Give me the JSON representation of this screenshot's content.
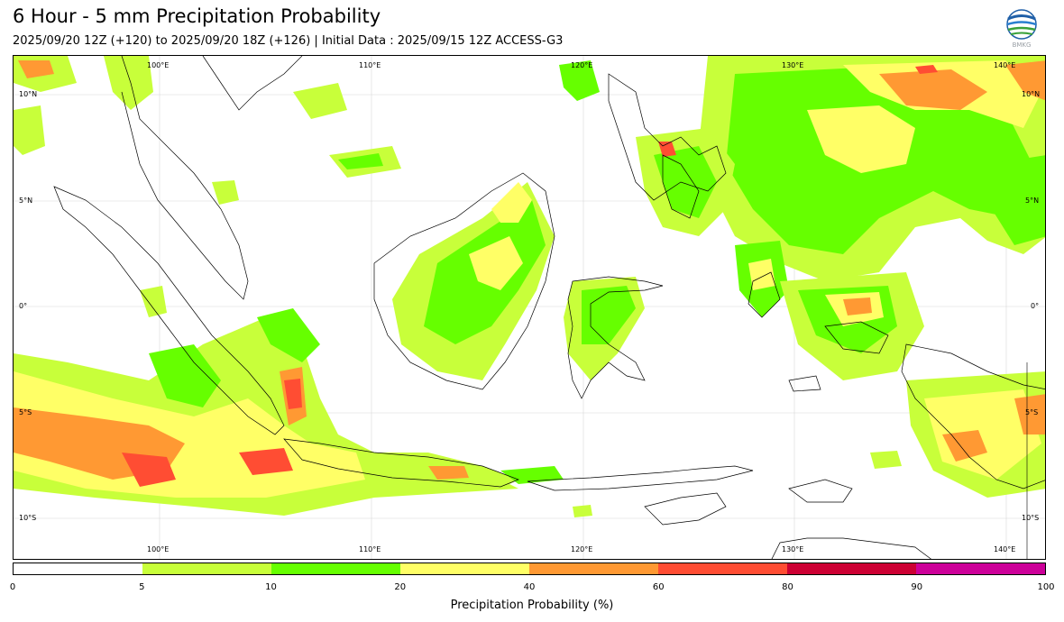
{
  "header": {
    "title": "6 Hour - 5 mm Precipitation Probability",
    "subtitle": "2025/09/20 12Z (+120) to 2025/09/20 18Z (+126) | Initial Data : 2025/09/15 12Z ACCESS-G3",
    "logo_text": "BMKG"
  },
  "map": {
    "lon_labels": [
      "100°E",
      "110°E",
      "120°E",
      "130°E",
      "140°E"
    ],
    "lat_labels": [
      "10°N",
      "5°N",
      "0°",
      "5°S",
      "10°S"
    ]
  },
  "colorbar": {
    "colors": [
      "#ffffff",
      "#c8ff3a",
      "#66ff00",
      "#ffff66",
      "#ff9933",
      "#ff4d33",
      "#cc0033",
      "#cc0099"
    ],
    "ticks": [
      "0",
      "5",
      "10",
      "20",
      "40",
      "60",
      "80",
      "90",
      "100"
    ],
    "label": "Precipitation Probability (%)"
  }
}
